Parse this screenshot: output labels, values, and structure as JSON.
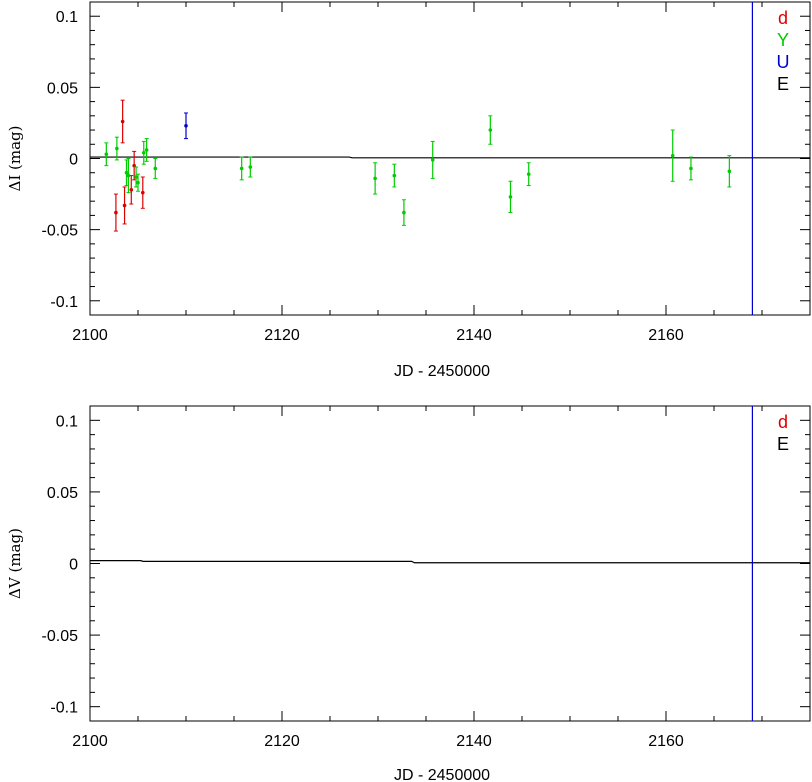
{
  "chart_data": [
    {
      "type": "scatter",
      "panel": "top",
      "xlabel": "JD - 2450000",
      "ylabel": "ΔI (mag)",
      "xlim": [
        2100,
        2175
      ],
      "ylim": [
        -0.11,
        0.11
      ],
      "x_ticks": [
        2100,
        2120,
        2140,
        2160
      ],
      "x_tick_labels": [
        "2100",
        "2120",
        "2140",
        "2160"
      ],
      "y_ticks": [
        0.1,
        0.05,
        0,
        -0.05,
        -0.1
      ],
      "y_tick_labels": [
        "0.1",
        "0.05",
        "0",
        "-0.05",
        "-0.1"
      ],
      "vline_x": 2169,
      "vline_color": "#0000cc",
      "trend": [
        [
          2100,
          0.001
        ],
        [
          2127,
          0.001
        ],
        [
          2127.3,
          0.0005
        ],
        [
          2175,
          0.0005
        ]
      ],
      "legend": [
        {
          "label": "d",
          "color": "#dd0000"
        },
        {
          "label": "Y",
          "color": "#00cc00"
        },
        {
          "label": "U",
          "color": "#0000cc"
        },
        {
          "label": "E",
          "color": "#000000"
        }
      ],
      "series": [
        {
          "color": "#dd0000",
          "points": [
            {
              "x": 2102.7,
              "y": -0.038,
              "err": 0.013
            },
            {
              "x": 2103.4,
              "y": 0.026,
              "err": 0.015
            },
            {
              "x": 2103.6,
              "y": -0.033,
              "err": 0.013
            },
            {
              "x": 2104.3,
              "y": -0.022,
              "err": 0.01
            },
            {
              "x": 2104.6,
              "y": -0.005,
              "err": 0.01
            },
            {
              "x": 2105.5,
              "y": -0.024,
              "err": 0.011
            }
          ]
        },
        {
          "color": "#00cc00",
          "points": [
            {
              "x": 2101.7,
              "y": 0.003,
              "err": 0.008
            },
            {
              "x": 2102.8,
              "y": 0.007,
              "err": 0.008
            },
            {
              "x": 2103.8,
              "y": -0.01,
              "err": 0.009
            },
            {
              "x": 2104.0,
              "y": -0.012,
              "err": 0.012
            },
            {
              "x": 2104.8,
              "y": -0.013,
              "err": 0.007
            },
            {
              "x": 2105.0,
              "y": -0.017,
              "err": 0.006
            },
            {
              "x": 2105.6,
              "y": 0.004,
              "err": 0.008
            },
            {
              "x": 2105.9,
              "y": 0.006,
              "err": 0.008
            },
            {
              "x": 2106.8,
              "y": -0.007,
              "err": 0.007
            },
            {
              "x": 2115.8,
              "y": -0.007,
              "err": 0.008
            },
            {
              "x": 2116.7,
              "y": -0.006,
              "err": 0.007
            },
            {
              "x": 2129.7,
              "y": -0.014,
              "err": 0.011
            },
            {
              "x": 2131.7,
              "y": -0.012,
              "err": 0.008
            },
            {
              "x": 2132.7,
              "y": -0.038,
              "err": 0.009
            },
            {
              "x": 2135.7,
              "y": -0.001,
              "err": 0.013
            },
            {
              "x": 2141.7,
              "y": 0.02,
              "err": 0.01
            },
            {
              "x": 2143.8,
              "y": -0.027,
              "err": 0.011
            },
            {
              "x": 2145.7,
              "y": -0.011,
              "err": 0.008
            },
            {
              "x": 2160.7,
              "y": 0.002,
              "err": 0.018
            },
            {
              "x": 2162.6,
              "y": -0.007,
              "err": 0.008
            },
            {
              "x": 2166.6,
              "y": -0.009,
              "err": 0.011
            }
          ]
        },
        {
          "color": "#0000cc",
          "points": [
            {
              "x": 2110.0,
              "y": 0.023,
              "err": 0.009
            }
          ]
        }
      ]
    },
    {
      "type": "scatter",
      "panel": "bottom",
      "xlabel": "JD - 2450000",
      "ylabel": "ΔV (mag)",
      "xlim": [
        2100,
        2175
      ],
      "ylim": [
        -0.11,
        0.11
      ],
      "x_ticks": [
        2100,
        2120,
        2140,
        2160
      ],
      "x_tick_labels": [
        "2100",
        "2120",
        "2140",
        "2160"
      ],
      "y_ticks": [
        0.1,
        0.05,
        0,
        -0.05,
        -0.1
      ],
      "y_tick_labels": [
        "0.1",
        "0.05",
        "0",
        "-0.05",
        "-0.1"
      ],
      "vline_x": 2169,
      "vline_color": "#0000cc",
      "trend": [
        [
          2100,
          0.002
        ],
        [
          2105.3,
          0.002
        ],
        [
          2105.5,
          0.0015
        ],
        [
          2133.5,
          0.0015
        ],
        [
          2133.8,
          0.0005
        ],
        [
          2175,
          0.0005
        ]
      ],
      "legend": [
        {
          "label": "d",
          "color": "#dd0000"
        },
        {
          "label": "E",
          "color": "#000000"
        }
      ],
      "series": []
    }
  ]
}
